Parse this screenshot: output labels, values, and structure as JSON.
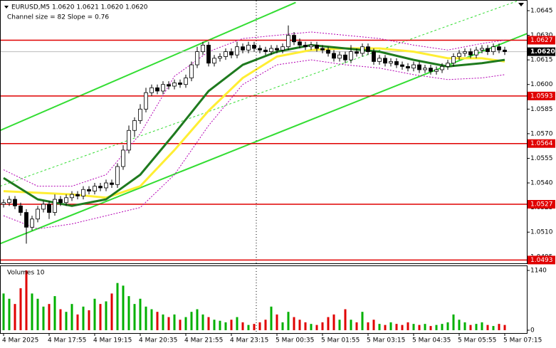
{
  "chart_data": {
    "type": "candlestick",
    "title": "EURUSD,M5  1.0620 1.0621 1.0620 1.0620",
    "subtitle": "Channel size = 82 Slope = 0.76",
    "open": [
      1.0527,
      1.0528,
      1.053,
      1.0526,
      1.0522,
      1.0513,
      1.0518,
      1.0524,
      1.0527,
      1.0522,
      1.053,
      1.0528,
      1.0531,
      1.0533,
      1.0532,
      1.0536,
      1.0535,
      1.0538,
      1.0537,
      1.054,
      1.0539,
      1.055,
      1.056,
      1.0572,
      1.0578,
      1.0585,
      1.0595,
      1.0598,
      1.0596,
      1.06,
      1.0599,
      1.0601,
      1.06,
      1.0604,
      1.0612,
      1.062,
      1.0624,
      1.0613,
      1.0616,
      1.0617,
      1.062,
      1.0618,
      1.0623,
      1.0621,
      1.0624,
      1.0622,
      1.0621,
      1.062,
      1.0622,
      1.0621,
      1.0623,
      1.063,
      1.0626,
      1.0624,
      1.0623,
      1.0624,
      1.0622,
      1.0621,
      1.0619,
      1.0616,
      1.0618,
      1.0615,
      1.062,
      1.0619,
      1.0623,
      1.062,
      1.0614,
      1.0616,
      1.0613,
      1.0614,
      1.0612,
      1.0611,
      1.061,
      1.0612,
      1.0609,
      1.061,
      1.0608,
      1.0609,
      1.0611,
      1.0613,
      1.0617,
      1.0619,
      1.062,
      1.0618,
      1.0621,
      1.0622,
      1.062,
      1.0623,
      1.0621
    ],
    "high": [
      1.053,
      1.0532,
      1.0532,
      1.0528,
      1.0524,
      1.052,
      1.0526,
      1.0529,
      1.0529,
      1.0533,
      1.0532,
      1.0533,
      1.0535,
      1.0535,
      1.0538,
      1.0538,
      1.054,
      1.054,
      1.0542,
      1.0542,
      1.0552,
      1.0563,
      1.0575,
      1.058,
      1.0588,
      1.0598,
      1.06,
      1.06,
      1.0602,
      1.0602,
      1.0603,
      1.0603,
      1.0606,
      1.0614,
      1.0623,
      1.0626,
      1.0626,
      1.0618,
      1.0619,
      1.0622,
      1.0622,
      1.0626,
      1.0625,
      1.0626,
      1.0626,
      1.0624,
      1.0623,
      1.0624,
      1.0624,
      1.0625,
      1.0636,
      1.0632,
      1.0628,
      1.0626,
      1.0626,
      1.0626,
      1.0624,
      1.0623,
      1.0621,
      1.062,
      1.062,
      1.0624,
      1.0622,
      1.0625,
      1.0625,
      1.0622,
      1.0618,
      1.0618,
      1.0616,
      1.0616,
      1.0614,
      1.0613,
      1.0614,
      1.0614,
      1.0612,
      1.0612,
      1.0611,
      1.0613,
      1.0615,
      1.0619,
      1.0621,
      1.0622,
      1.0622,
      1.0623,
      1.0624,
      1.0624,
      1.0625,
      1.0625,
      1.0623
    ],
    "low": [
      1.0525,
      1.0526,
      1.0524,
      1.052,
      1.0503,
      1.0511,
      1.0516,
      1.0522,
      1.0518,
      1.052,
      1.0526,
      1.0526,
      1.0529,
      1.053,
      1.053,
      1.0533,
      1.0533,
      1.0535,
      1.0535,
      1.0537,
      1.0537,
      1.0548,
      1.0558,
      1.0568,
      1.0576,
      1.0583,
      1.0593,
      1.0594,
      1.0594,
      1.0597,
      1.0597,
      1.0598,
      1.0598,
      1.0602,
      1.061,
      1.0618,
      1.0611,
      1.0611,
      1.0614,
      1.0615,
      1.0616,
      1.0616,
      1.0619,
      1.0619,
      1.062,
      1.0619,
      1.0618,
      1.0618,
      1.0619,
      1.0619,
      1.0621,
      1.0624,
      1.0622,
      1.0621,
      1.0621,
      1.062,
      1.0619,
      1.0617,
      1.0614,
      1.0614,
      1.0613,
      1.0613,
      1.0617,
      1.0617,
      1.0618,
      1.0612,
      1.0612,
      1.0611,
      1.0611,
      1.061,
      1.0609,
      1.0608,
      1.0608,
      1.0607,
      1.0607,
      1.0606,
      1.0606,
      1.0607,
      1.0609,
      1.0611,
      1.0615,
      1.0617,
      1.0616,
      1.0616,
      1.0619,
      1.0618,
      1.0618,
      1.0619,
      1.0618
    ],
    "close": [
      1.0528,
      1.053,
      1.0526,
      1.0522,
      1.0513,
      1.0518,
      1.0524,
      1.0527,
      1.0522,
      1.053,
      1.0528,
      1.0531,
      1.0533,
      1.0532,
      1.0536,
      1.0535,
      1.0538,
      1.0537,
      1.054,
      1.0539,
      1.055,
      1.056,
      1.0572,
      1.0578,
      1.0585,
      1.0595,
      1.0598,
      1.0596,
      1.06,
      1.0599,
      1.0601,
      1.06,
      1.0604,
      1.0612,
      1.062,
      1.0624,
      1.0613,
      1.0616,
      1.0617,
      1.062,
      1.0618,
      1.0623,
      1.0621,
      1.0624,
      1.0622,
      1.0621,
      1.062,
      1.0622,
      1.0621,
      1.0623,
      1.063,
      1.0626,
      1.0624,
      1.0623,
      1.0624,
      1.0622,
      1.0621,
      1.0619,
      1.0616,
      1.0618,
      1.0615,
      1.062,
      1.0619,
      1.0623,
      1.062,
      1.0614,
      1.0616,
      1.0613,
      1.0614,
      1.0612,
      1.0611,
      1.061,
      1.0612,
      1.0609,
      1.061,
      1.0608,
      1.0609,
      1.0611,
      1.0613,
      1.0617,
      1.0619,
      1.062,
      1.0618,
      1.0621,
      1.0622,
      1.062,
      1.0623,
      1.0621,
      1.062
    ],
    "xticks": [
      {
        "value": 0,
        "label": "4 Mar 2025"
      },
      {
        "value": 8,
        "label": "4 Mar 17:55"
      },
      {
        "value": 16,
        "label": "4 Mar 19:15"
      },
      {
        "value": 24,
        "label": "4 Mar 20:35"
      },
      {
        "value": 32,
        "label": "4 Mar 21:55"
      },
      {
        "value": 40,
        "label": "4 Mar 23:15"
      },
      {
        "value": 48,
        "label": "5 Mar 00:35"
      },
      {
        "value": 56,
        "label": "5 Mar 01:55"
      },
      {
        "value": 64,
        "label": "5 Mar 03:15"
      },
      {
        "value": 72,
        "label": "5 Mar 04:35"
      },
      {
        "value": 80,
        "label": "5 Mar 05:55"
      },
      {
        "value": 88,
        "label": "5 Mar 07:15"
      }
    ],
    "ylim": [
      1.0491,
      1.06515
    ],
    "yticks": [
      1.0645,
      {
        "value": 1.063,
        "label": "1.0630"
      },
      1.0615,
      {
        "value": 1.06,
        "label": "1.0600"
      },
      1.0585,
      {
        "value": 1.057,
        "label": "1.0570"
      },
      1.0555,
      {
        "value": 1.054,
        "label": "1.0540"
      },
      1.0525,
      {
        "value": 1.051,
        "label": "1.0510"
      },
      1.0495
    ],
    "levels": [
      1.0627,
      1.0593,
      1.0564,
      1.0527,
      1.0493
    ],
    "level_color": "#e00000",
    "current_price": {
      "value": 1.062,
      "label": "1.0620"
    },
    "indicators": [
      {
        "color": "#b400b4",
        "dash": "2 2",
        "x": [
          0,
          6,
          12,
          18,
          24,
          30,
          36,
          42,
          48,
          54,
          60,
          66,
          72,
          78,
          84,
          88
        ],
        "values": [
          1.0548,
          1.0538,
          1.0538,
          1.0545,
          1.057,
          1.0605,
          1.062,
          1.0628,
          1.063,
          1.0632,
          1.063,
          1.0628,
          1.0624,
          1.0621,
          1.0625,
          1.0627
        ]
      },
      {
        "color": "#b400b4",
        "dash": "2 2",
        "x": [
          0,
          6,
          12,
          18,
          24,
          30,
          36,
          42,
          48,
          54,
          60,
          66,
          72,
          78,
          84,
          88
        ],
        "values": [
          1.052,
          1.0512,
          1.0515,
          1.052,
          1.0525,
          1.0545,
          1.0575,
          1.06,
          1.0612,
          1.0615,
          1.0612,
          1.061,
          1.0606,
          1.0603,
          1.0604,
          1.0606
        ]
      },
      {
        "color": "#ffee33",
        "width": 3,
        "x": [
          0,
          6,
          12,
          18,
          24,
          30,
          36,
          42,
          48,
          54,
          60,
          66,
          72,
          78,
          84,
          88
        ],
        "values": [
          1.0535,
          1.0534,
          1.0533,
          1.0531,
          1.0538,
          1.056,
          1.0584,
          1.0604,
          1.0617,
          1.0621,
          1.0622,
          1.0622,
          1.062,
          1.0616,
          1.0616,
          1.0614
        ]
      },
      {
        "color": "#1e7a1e",
        "width": 3,
        "x": [
          0,
          6,
          12,
          18,
          24,
          30,
          36,
          42,
          48,
          54,
          60,
          66,
          72,
          78,
          84,
          88
        ],
        "values": [
          1.0543,
          1.053,
          1.0526,
          1.053,
          1.0545,
          1.057,
          1.0596,
          1.0612,
          1.062,
          1.0624,
          1.0622,
          1.062,
          1.0615,
          1.0611,
          1.0613,
          1.0615
        ]
      }
    ],
    "channel": [
      {
        "color": "#33dd33",
        "x": [
          -0.6,
          51.3
        ],
        "values": [
          1.0572,
          1.065
        ]
      },
      {
        "color": "#33dd33",
        "x": [
          -0.6,
          91.9
        ],
        "values": [
          1.0503,
          1.0631
        ]
      },
      {
        "color": "#33dd33",
        "dash": "3 3",
        "x": [
          -0.6,
          91.9
        ],
        "values": [
          1.0538,
          1.0653
        ]
      }
    ],
    "volume": {
      "title": "Volumes 10",
      "ylim": [
        0,
        1140
      ],
      "yticks": [
        0,
        1140
      ],
      "up_color": "#00b000",
      "down_color": "#e00000",
      "values": [
        700,
        600,
        500,
        800,
        1140,
        700,
        600,
        450,
        500,
        650,
        400,
        350,
        500,
        300,
        450,
        380,
        600,
        500,
        550,
        700,
        900,
        850,
        650,
        500,
        600,
        450,
        400,
        350,
        300,
        250,
        300,
        200,
        250,
        350,
        400,
        300,
        250,
        200,
        180,
        150,
        200,
        250,
        150,
        100,
        120,
        150,
        200,
        450,
        300,
        150,
        350,
        250,
        200,
        150,
        120,
        100,
        150,
        250,
        300,
        200,
        400,
        200,
        150,
        350,
        150,
        200,
        120,
        100,
        150,
        120,
        100,
        150,
        120,
        100,
        120,
        80,
        100,
        120,
        150,
        300,
        200,
        150,
        100,
        120,
        150,
        100,
        80,
        120,
        100
      ]
    }
  }
}
